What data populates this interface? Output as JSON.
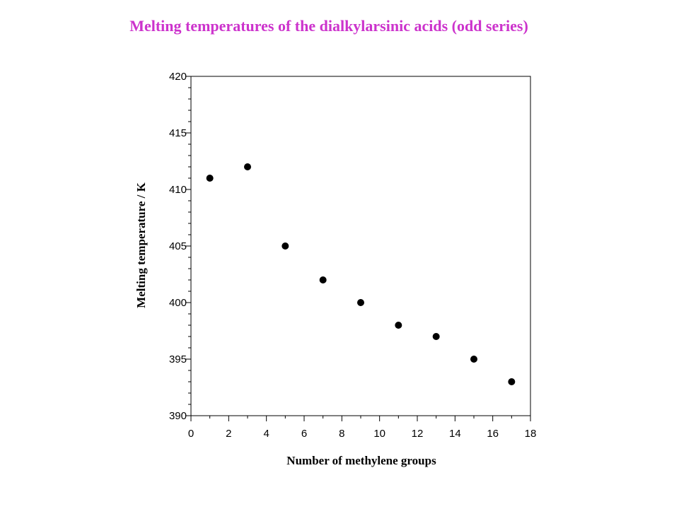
{
  "slide": {
    "title": "Melting temperatures of the dialkylarsinic acids (odd series)",
    "title_color": "#cc33cc"
  },
  "chart_data": {
    "type": "scatter",
    "title": "",
    "xlabel": "Number of methylene groups",
    "ylabel": "Melting temperature / K",
    "xlim": [
      0,
      18
    ],
    "ylim": [
      390,
      420
    ],
    "x_ticks": [
      0,
      2,
      4,
      6,
      8,
      10,
      12,
      14,
      16,
      18
    ],
    "y_ticks": [
      390,
      395,
      400,
      405,
      410,
      415,
      420
    ],
    "grid": false,
    "legend": "none",
    "marker_color": "#000000",
    "series": [
      {
        "x": [
          1,
          3,
          5,
          7,
          9,
          11,
          13,
          15,
          17
        ],
        "y": [
          411,
          412,
          405,
          402,
          400,
          398,
          397,
          395,
          393
        ]
      }
    ]
  }
}
